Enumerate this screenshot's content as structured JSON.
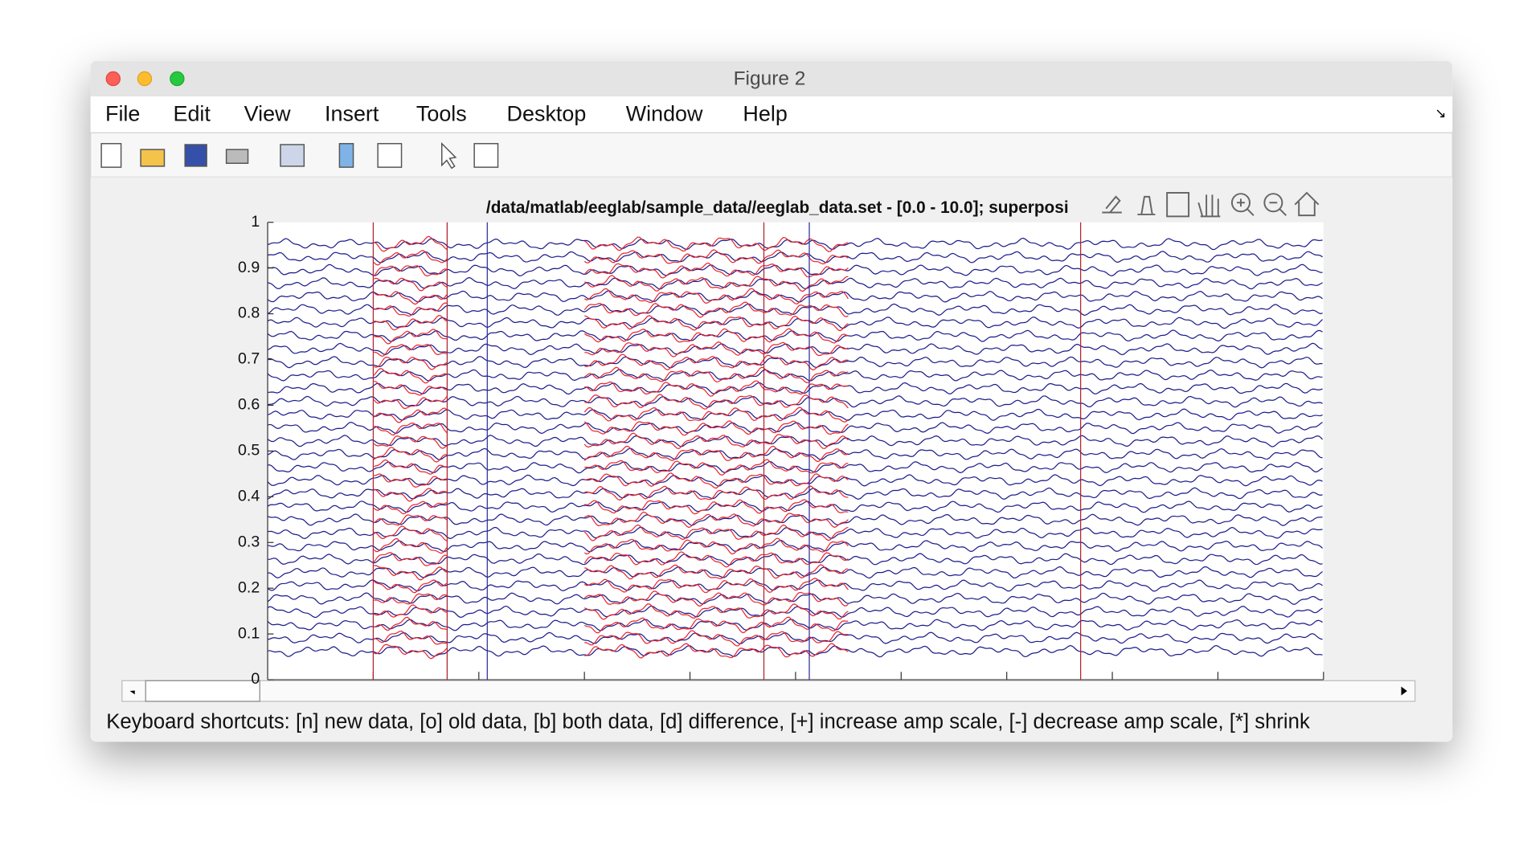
{
  "window": {
    "title": "Figure 2"
  },
  "menu": [
    "File",
    "Edit",
    "View",
    "Insert",
    "Tools",
    "Desktop",
    "Window",
    "Help"
  ],
  "chart_data": {
    "type": "line",
    "title": "/data/matlab/eeglab/sample_data//eeglab_data.set - [0.0 - 10.0]; superposi",
    "xlim": [
      0,
      10
    ],
    "xticks": [
      1,
      2,
      3,
      4,
      5,
      6,
      7,
      8,
      9,
      10
    ],
    "ylim": [
      0,
      1
    ],
    "yticks": [
      0,
      0.1,
      0.2,
      0.3,
      0.4,
      0.5,
      0.6,
      0.7,
      0.8,
      0.9,
      1
    ],
    "colors": {
      "new": "#1c1c8a",
      "old": "#e8262c"
    },
    "old_ranges": [
      [
        1.0,
        1.7
      ],
      [
        3.0,
        5.5
      ]
    ],
    "events": [
      {
        "x": 1.0,
        "color": "#b0202a"
      },
      {
        "x": 1.7,
        "color": "#b0202a"
      },
      {
        "x": 2.08,
        "color": "#2a2a9a"
      },
      {
        "x": 4.7,
        "color": "#b0202a"
      },
      {
        "x": 5.13,
        "color": "#2a2a9a"
      },
      {
        "x": 7.7,
        "color": "#b0202a"
      }
    ]
  },
  "status": "Keyboard shortcuts: [n] new data, [o] old data, [b] both data, [d] difference, [+] increase amp scale, [-] decrease amp scale, [*] shrink"
}
